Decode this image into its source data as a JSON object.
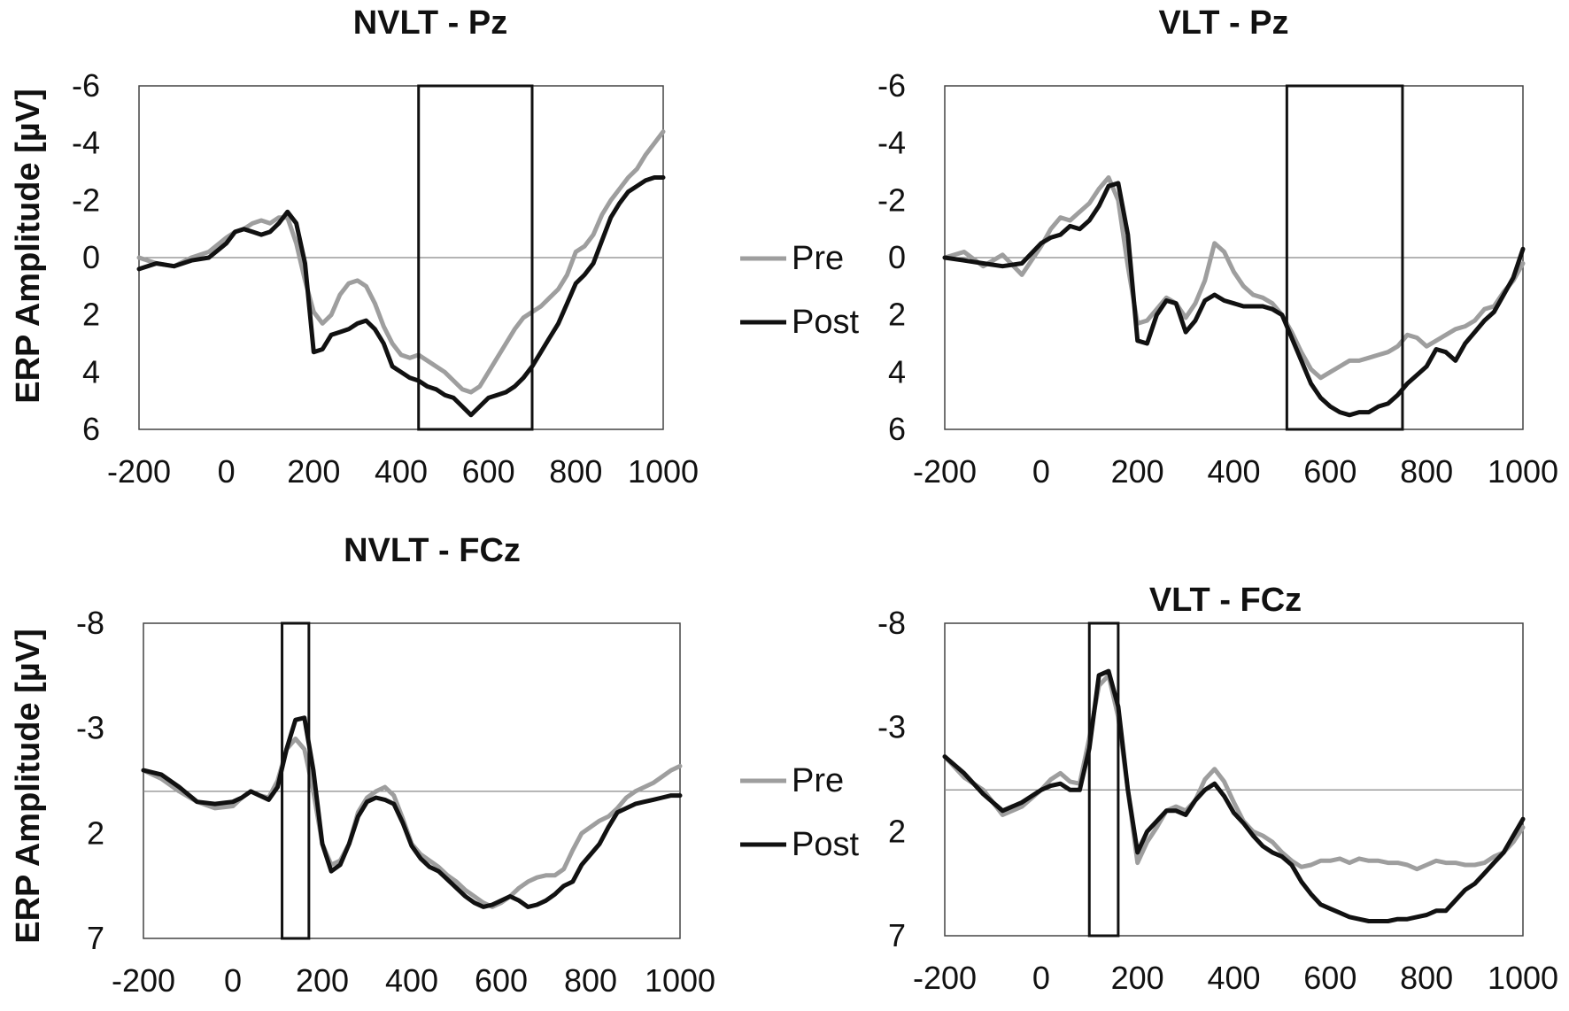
{
  "figure": {
    "ylabel": "ERP Amplitude [µV]",
    "legend": [
      "Pre",
      "Post"
    ]
  },
  "colors": {
    "pre": "#9e9e9e",
    "post": "#111111",
    "zero_line": "#888888",
    "axis": "#444444",
    "window": "#111111"
  },
  "chart_data": [
    {
      "type": "line",
      "title": "NVLT - Pz",
      "xlabel": "",
      "ylabel": "ERP Amplitude [µV]",
      "xlim": [
        -200,
        1000
      ],
      "ylim": [
        -6,
        6
      ],
      "y_inverted": true,
      "xticks": [
        -200,
        0,
        200,
        400,
        600,
        800,
        1000
      ],
      "yticks": [
        -6,
        -4,
        -2,
        0,
        2,
        4,
        6
      ],
      "window_ms": [
        440,
        700
      ],
      "x": [
        -200,
        -160,
        -120,
        -80,
        -40,
        0,
        20,
        40,
        60,
        80,
        100,
        120,
        140,
        160,
        180,
        200,
        220,
        240,
        260,
        280,
        300,
        320,
        340,
        360,
        380,
        400,
        420,
        440,
        460,
        480,
        500,
        520,
        540,
        560,
        580,
        600,
        620,
        640,
        660,
        680,
        700,
        720,
        740,
        760,
        780,
        800,
        820,
        840,
        860,
        880,
        900,
        920,
        940,
        960,
        980,
        1000
      ],
      "series": [
        {
          "name": "Pre",
          "values": [
            0.0,
            0.2,
            0.3,
            0.0,
            -0.2,
            -0.7,
            -0.9,
            -1.0,
            -1.2,
            -1.3,
            -1.2,
            -1.4,
            -1.4,
            -0.5,
            0.8,
            1.9,
            2.3,
            2.0,
            1.3,
            0.9,
            0.8,
            1.0,
            1.6,
            2.4,
            3.0,
            3.4,
            3.5,
            3.4,
            3.6,
            3.8,
            4.0,
            4.3,
            4.6,
            4.7,
            4.5,
            4.0,
            3.5,
            3.0,
            2.5,
            2.1,
            1.9,
            1.7,
            1.4,
            1.1,
            0.6,
            -0.2,
            -0.4,
            -0.8,
            -1.5,
            -2.0,
            -2.4,
            -2.8,
            -3.1,
            -3.6,
            -4.0,
            -4.4
          ]
        },
        {
          "name": "Post",
          "values": [
            0.4,
            0.2,
            0.3,
            0.1,
            0.0,
            -0.5,
            -0.9,
            -1.0,
            -0.9,
            -0.8,
            -0.9,
            -1.2,
            -1.6,
            -1.2,
            0.2,
            3.3,
            3.2,
            2.7,
            2.6,
            2.5,
            2.3,
            2.2,
            2.5,
            3.0,
            3.8,
            4.0,
            4.2,
            4.3,
            4.5,
            4.6,
            4.8,
            4.9,
            5.2,
            5.5,
            5.2,
            4.9,
            4.8,
            4.7,
            4.5,
            4.2,
            3.8,
            3.3,
            2.8,
            2.3,
            1.6,
            0.9,
            0.6,
            0.2,
            -0.6,
            -1.4,
            -1.9,
            -2.3,
            -2.5,
            -2.7,
            -2.8,
            -2.8
          ]
        }
      ]
    },
    {
      "type": "line",
      "title": "VLT - Pz",
      "xlabel": "",
      "ylabel": "",
      "xlim": [
        -200,
        1000
      ],
      "ylim": [
        -6,
        6
      ],
      "y_inverted": true,
      "xticks": [
        -200,
        0,
        200,
        400,
        600,
        800,
        1000
      ],
      "yticks": [
        -6,
        -4,
        -2,
        0,
        2,
        4,
        6
      ],
      "window_ms": [
        510,
        750
      ],
      "x": [
        -200,
        -160,
        -120,
        -80,
        -40,
        0,
        20,
        40,
        60,
        80,
        100,
        120,
        140,
        160,
        180,
        200,
        220,
        240,
        260,
        280,
        300,
        320,
        340,
        360,
        380,
        400,
        420,
        440,
        460,
        480,
        500,
        520,
        540,
        560,
        580,
        600,
        620,
        640,
        660,
        680,
        700,
        720,
        740,
        760,
        780,
        800,
        820,
        840,
        860,
        880,
        900,
        920,
        940,
        960,
        980,
        1000
      ],
      "series": [
        {
          "name": "Pre",
          "values": [
            0.0,
            -0.2,
            0.3,
            -0.1,
            0.6,
            -0.4,
            -1.0,
            -1.4,
            -1.3,
            -1.6,
            -1.9,
            -2.4,
            -2.8,
            -2.0,
            0.3,
            2.3,
            2.2,
            1.8,
            1.4,
            1.6,
            2.1,
            1.6,
            0.8,
            -0.5,
            -0.2,
            0.5,
            1.0,
            1.3,
            1.4,
            1.6,
            2.0,
            2.6,
            3.3,
            3.9,
            4.2,
            4.0,
            3.8,
            3.6,
            3.6,
            3.5,
            3.4,
            3.3,
            3.1,
            2.7,
            2.8,
            3.1,
            2.9,
            2.7,
            2.5,
            2.4,
            2.2,
            1.8,
            1.7,
            1.2,
            0.8,
            0.2
          ]
        },
        {
          "name": "Post",
          "values": [
            0.0,
            0.1,
            0.2,
            0.3,
            0.2,
            -0.5,
            -0.7,
            -0.8,
            -1.1,
            -1.0,
            -1.3,
            -1.8,
            -2.5,
            -2.6,
            -0.8,
            2.9,
            3.0,
            2.0,
            1.5,
            1.6,
            2.6,
            2.2,
            1.5,
            1.3,
            1.5,
            1.6,
            1.7,
            1.7,
            1.7,
            1.8,
            2.0,
            2.8,
            3.6,
            4.4,
            4.9,
            5.2,
            5.4,
            5.5,
            5.4,
            5.4,
            5.2,
            5.1,
            4.8,
            4.4,
            4.1,
            3.8,
            3.2,
            3.3,
            3.6,
            3.0,
            2.6,
            2.2,
            1.9,
            1.3,
            0.7,
            -0.3
          ]
        }
      ]
    },
    {
      "type": "line",
      "title": "NVLT - FCz",
      "xlabel": "",
      "ylabel": "ERP Amplitude [µV]",
      "xlim": [
        -200,
        1000
      ],
      "ylim": [
        -8,
        7
      ],
      "y_inverted": true,
      "xticks": [
        -200,
        0,
        200,
        400,
        600,
        800,
        1000
      ],
      "yticks": [
        -8,
        -3,
        2,
        7
      ],
      "window_ms": [
        110,
        170
      ],
      "x": [
        -200,
        -160,
        -120,
        -80,
        -40,
        0,
        20,
        40,
        60,
        80,
        100,
        120,
        140,
        160,
        180,
        200,
        220,
        240,
        260,
        280,
        300,
        320,
        340,
        360,
        380,
        400,
        420,
        440,
        460,
        480,
        500,
        520,
        540,
        560,
        580,
        600,
        620,
        640,
        660,
        680,
        700,
        720,
        740,
        760,
        780,
        800,
        820,
        840,
        860,
        880,
        900,
        920,
        940,
        960,
        980,
        1000
      ],
      "series": [
        {
          "name": "Pre",
          "values": [
            -1.0,
            -0.6,
            0.0,
            0.5,
            0.8,
            0.7,
            0.3,
            0.0,
            0.2,
            0.3,
            -0.5,
            -2.0,
            -2.5,
            -2.0,
            0.0,
            2.5,
            3.5,
            3.3,
            2.5,
            1.0,
            0.3,
            0.0,
            -0.2,
            0.2,
            1.3,
            2.5,
            3.0,
            3.3,
            3.6,
            4.0,
            4.3,
            4.7,
            5.0,
            5.3,
            5.5,
            5.3,
            5.0,
            4.6,
            4.3,
            4.1,
            4.0,
            4.0,
            3.7,
            2.8,
            2.0,
            1.7,
            1.4,
            1.2,
            0.8,
            0.3,
            0.0,
            -0.2,
            -0.4,
            -0.7,
            -1.0,
            -1.2
          ]
        },
        {
          "name": "Post",
          "values": [
            -1.0,
            -0.8,
            -0.2,
            0.5,
            0.6,
            0.5,
            0.3,
            0.0,
            0.2,
            0.4,
            -0.2,
            -2.0,
            -3.4,
            -3.5,
            -1.0,
            2.5,
            3.8,
            3.5,
            2.5,
            1.2,
            0.5,
            0.3,
            0.4,
            0.6,
            1.5,
            2.6,
            3.2,
            3.6,
            3.8,
            4.2,
            4.6,
            5.0,
            5.3,
            5.5,
            5.4,
            5.2,
            5.0,
            5.2,
            5.5,
            5.4,
            5.2,
            4.9,
            4.5,
            4.3,
            3.5,
            3.0,
            2.5,
            1.7,
            1.0,
            0.8,
            0.6,
            0.5,
            0.4,
            0.3,
            0.2,
            0.2
          ]
        }
      ]
    },
    {
      "type": "line",
      "title": "VLT - FCz",
      "xlabel": "",
      "ylabel": "",
      "xlim": [
        -200,
        1000
      ],
      "ylim": [
        -8,
        7
      ],
      "y_inverted": true,
      "xticks": [
        -200,
        0,
        200,
        400,
        600,
        800,
        1000
      ],
      "yticks": [
        -8,
        -3,
        2,
        7
      ],
      "window_ms": [
        100,
        160
      ],
      "x": [
        -200,
        -160,
        -120,
        -80,
        -40,
        0,
        20,
        40,
        60,
        80,
        100,
        120,
        140,
        160,
        180,
        200,
        220,
        240,
        260,
        280,
        300,
        320,
        340,
        360,
        380,
        400,
        420,
        440,
        460,
        480,
        500,
        520,
        540,
        560,
        580,
        600,
        620,
        640,
        660,
        680,
        700,
        720,
        740,
        760,
        780,
        800,
        820,
        840,
        860,
        880,
        900,
        920,
        940,
        960,
        980,
        1000
      ],
      "series": [
        {
          "name": "Pre",
          "values": [
            -1.6,
            -0.6,
            0.0,
            1.2,
            0.8,
            0.0,
            -0.5,
            -0.8,
            -0.4,
            -0.3,
            -2.5,
            -5.0,
            -5.5,
            -3.5,
            0.0,
            3.5,
            2.5,
            1.8,
            1.0,
            0.8,
            1.0,
            0.5,
            -0.5,
            -1.0,
            -0.4,
            0.6,
            1.5,
            2.0,
            2.2,
            2.5,
            3.0,
            3.4,
            3.7,
            3.6,
            3.4,
            3.4,
            3.3,
            3.5,
            3.3,
            3.4,
            3.4,
            3.5,
            3.5,
            3.6,
            3.8,
            3.6,
            3.4,
            3.5,
            3.5,
            3.6,
            3.6,
            3.5,
            3.2,
            3.0,
            2.5,
            1.8
          ]
        },
        {
          "name": "Post",
          "values": [
            -1.6,
            -0.8,
            0.2,
            1.0,
            0.6,
            0.0,
            -0.2,
            -0.3,
            0.0,
            0.0,
            -2.0,
            -5.5,
            -5.7,
            -4.0,
            0.0,
            3.0,
            2.0,
            1.5,
            1.0,
            1.0,
            1.2,
            0.5,
            0.0,
            -0.3,
            0.3,
            1.1,
            1.6,
            2.2,
            2.7,
            3.0,
            3.2,
            3.6,
            4.4,
            5.0,
            5.5,
            5.7,
            5.9,
            6.1,
            6.2,
            6.3,
            6.3,
            6.3,
            6.2,
            6.2,
            6.1,
            6.0,
            5.8,
            5.8,
            5.3,
            4.8,
            4.5,
            4.0,
            3.5,
            3.0,
            2.2,
            1.4
          ]
        }
      ]
    }
  ]
}
